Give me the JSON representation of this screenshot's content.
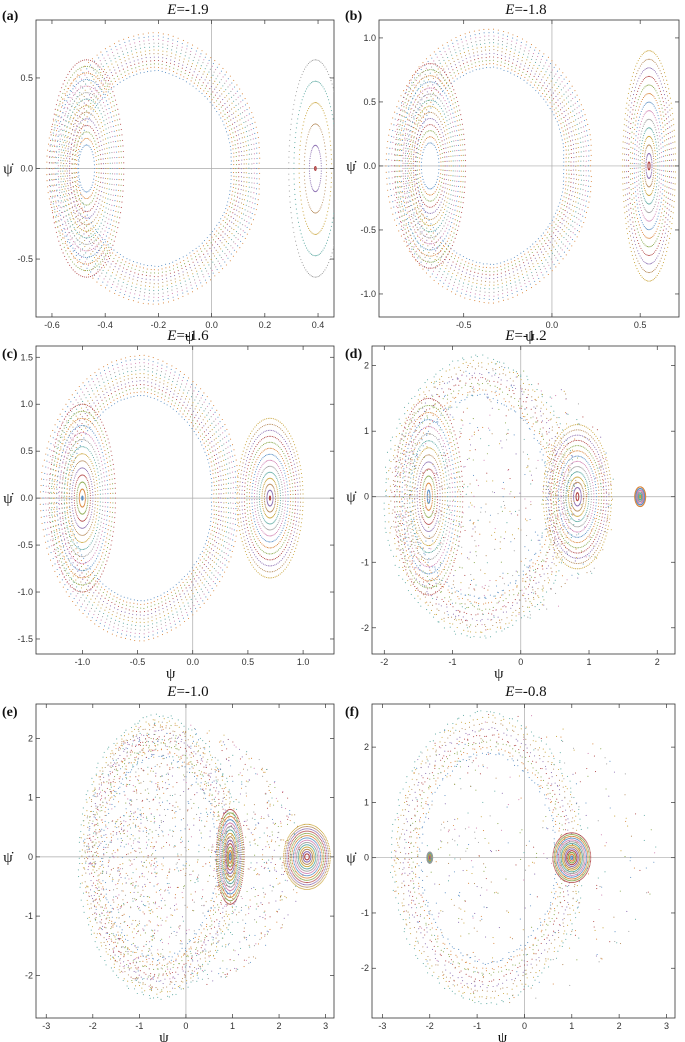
{
  "chart_data": [
    {
      "panel": "(a)",
      "title_prefix": "E",
      "title_value": "=-1.9",
      "type": "scatter",
      "xlabel": "ψ",
      "ylabel": "ψ̇",
      "xlim": [
        -0.66,
        0.46
      ],
      "ylim": [
        -0.82,
        0.82
      ],
      "xticks": [
        {
          "v": -0.6,
          "label": "-0.6"
        },
        {
          "v": -0.4,
          "label": "-0.4"
        },
        {
          "v": -0.2,
          "label": "-0.2"
        },
        {
          "v": 0.0,
          "label": "0.0"
        },
        {
          "v": 0.2,
          "label": "0.2"
        },
        {
          "v": 0.4,
          "label": "0.4"
        }
      ],
      "yticks": [
        {
          "v": -0.5,
          "label": "-0.5"
        },
        {
          "v": 0.0,
          "label": "0.0"
        },
        {
          "v": 0.5,
          "label": "0.5"
        }
      ],
      "outer_boundary": {
        "x_left": -0.62,
        "x_right": 0.22,
        "y_max": 0.75
      },
      "islands": [
        {
          "center": [
            -0.47,
            0.0
          ],
          "rx_max": 0.14,
          "ry_max": 0.6,
          "rx_min": 0.03,
          "ry_min": 0.13
        },
        {
          "center": [
            0.39,
            0.0
          ],
          "rx_max": 0.1,
          "ry_max": 0.6,
          "rx_min": 0.003,
          "ry_min": 0.01
        }
      ]
    },
    {
      "panel": "(b)",
      "title_prefix": "E",
      "title_value": "=-1.8",
      "type": "scatter",
      "xlabel": "ψ",
      "ylabel": "ψ̇",
      "xlim": [
        -0.98,
        0.72
      ],
      "ylim": [
        -1.18,
        1.14
      ],
      "xticks": [
        {
          "v": -0.5,
          "label": "-0.5"
        },
        {
          "v": 0.0,
          "label": "0.0"
        },
        {
          "v": 0.5,
          "label": "0.5"
        }
      ],
      "yticks": [
        {
          "v": -1.0,
          "label": "-1.0"
        },
        {
          "v": -0.5,
          "label": "-0.5"
        },
        {
          "v": 0.0,
          "label": "0.0"
        },
        {
          "v": 0.5,
          "label": "0.5"
        },
        {
          "v": 1.0,
          "label": "1.0"
        }
      ],
      "outer_boundary": {
        "x_left": -0.94,
        "x_right": 0.28,
        "y_max": 1.07
      },
      "islands": [
        {
          "center": [
            -0.69,
            0.0
          ],
          "rx_max": 0.2,
          "ry_max": 0.8,
          "rx_min": 0.05,
          "ry_min": 0.18
        },
        {
          "center": [
            0.55,
            0.0
          ],
          "rx_max": 0.15,
          "ry_max": 0.9,
          "rx_min": 0.006,
          "ry_min": 0.03
        }
      ]
    },
    {
      "panel": "(c)",
      "title_prefix": "E",
      "title_value": "=-1.6",
      "type": "scatter",
      "xlabel": "ψ",
      "ylabel": "ψ̇",
      "xlim": [
        -1.42,
        1.28
      ],
      "ylim": [
        -1.66,
        1.62
      ],
      "xticks": [
        {
          "v": -1.0,
          "label": "-1.0"
        },
        {
          "v": -0.5,
          "label": "-0.5"
        },
        {
          "v": 0.0,
          "label": "0.0"
        },
        {
          "v": 0.5,
          "label": "0.5"
        },
        {
          "v": 1.0,
          "label": "1.0"
        }
      ],
      "yticks": [
        {
          "v": -1.5,
          "label": "-1.5"
        },
        {
          "v": -1.0,
          "label": "-1.0"
        },
        {
          "v": -0.5,
          "label": "-0.5"
        },
        {
          "v": 0.0,
          "label": "0.0"
        },
        {
          "v": 0.5,
          "label": "0.5"
        },
        {
          "v": 1.0,
          "label": "1.0"
        },
        {
          "v": 1.5,
          "label": "1.5"
        }
      ],
      "outer_boundary": {
        "x_left": -1.38,
        "x_right": 0.5,
        "y_max": 1.52
      },
      "islands": [
        {
          "center": [
            -1.0,
            0.0
          ],
          "rx_max": 0.3,
          "ry_max": 1.0,
          "rx_min": 0.005,
          "ry_min": 0.02
        },
        {
          "center": [
            0.7,
            0.0
          ],
          "rx_max": 0.3,
          "ry_max": 0.85,
          "rx_min": 0.005,
          "ry_min": 0.02
        }
      ]
    },
    {
      "panel": "(d)",
      "title_prefix": "E",
      "title_value": "=-1.2",
      "type": "scatter",
      "xlabel": "ψ",
      "ylabel": "ψ̇",
      "xlim": [
        -2.18,
        2.26
      ],
      "ylim": [
        -2.4,
        2.3
      ],
      "xticks": [
        {
          "v": -2,
          "label": "-2"
        },
        {
          "v": -1,
          "label": "-1"
        },
        {
          "v": 0,
          "label": "0"
        },
        {
          "v": 1,
          "label": "1"
        },
        {
          "v": 2,
          "label": "2"
        }
      ],
      "yticks": [
        {
          "v": -2,
          "label": "-2"
        },
        {
          "v": -1,
          "label": "-1"
        },
        {
          "v": 0,
          "label": "0"
        },
        {
          "v": 1,
          "label": "1"
        },
        {
          "v": 2,
          "label": "2"
        }
      ],
      "outer_boundary": {
        "x_left": -2.0,
        "x_right": 0.9,
        "y_max": 2.15
      },
      "islands": [
        {
          "center": [
            -1.35,
            0.0
          ],
          "rx_max": 0.5,
          "ry_max": 1.5,
          "rx_min": 0.02,
          "ry_min": 0.1
        },
        {
          "center": [
            0.83,
            0.0
          ],
          "rx_max": 0.5,
          "ry_max": 1.1,
          "rx_min": 0.02,
          "ry_min": 0.06
        },
        {
          "center": [
            1.75,
            0.0
          ],
          "rx_max": 0.08,
          "ry_max": 0.15,
          "rx_min": 0.01,
          "ry_min": 0.02
        }
      ]
    },
    {
      "panel": "(e)",
      "title_prefix": "E",
      "title_value": "=-1.0",
      "type": "scatter",
      "xlabel": "ψ",
      "ylabel": "ψ̇",
      "xlim": [
        -3.22,
        3.18
      ],
      "ylim": [
        -2.72,
        2.58
      ],
      "xticks": [
        {
          "v": -3,
          "label": "-3"
        },
        {
          "v": -2,
          "label": "-2"
        },
        {
          "v": -1,
          "label": "-1"
        },
        {
          "v": 0,
          "label": "0"
        },
        {
          "v": 1,
          "label": "1"
        },
        {
          "v": 2,
          "label": "2"
        },
        {
          "v": 3,
          "label": "3"
        }
      ],
      "yticks": [
        {
          "v": -2,
          "label": "-2"
        },
        {
          "v": -1,
          "label": "-1"
        },
        {
          "v": 0,
          "label": "0"
        },
        {
          "v": 1,
          "label": "1"
        },
        {
          "v": 2,
          "label": "2"
        }
      ],
      "outer_boundary": {
        "x_left": -2.3,
        "x_right": 1.3,
        "y_max": 2.4
      },
      "islands": [
        {
          "center": [
            0.95,
            0.0
          ],
          "rx_max": 0.3,
          "ry_max": 0.8,
          "rx_min": 0.02,
          "ry_min": 0.05
        },
        {
          "center": [
            2.6,
            0.0
          ],
          "rx_max": 0.5,
          "ry_max": 0.55,
          "rx_min": 0.05,
          "ry_min": 0.05
        }
      ]
    },
    {
      "panel": "(f)",
      "title_prefix": "E",
      "title_value": "=-0.8",
      "type": "scatter",
      "xlabel": "ψ",
      "ylabel": "ψ̇",
      "xlim": [
        -3.22,
        3.18
      ],
      "ylim": [
        -2.9,
        2.78
      ],
      "xticks": [
        {
          "v": -3,
          "label": "-3"
        },
        {
          "v": -2,
          "label": "-2"
        },
        {
          "v": -1,
          "label": "-1"
        },
        {
          "v": 0,
          "label": "0"
        },
        {
          "v": 1,
          "label": "1"
        },
        {
          "v": 2,
          "label": "2"
        },
        {
          "v": 3,
          "label": "3"
        }
      ],
      "yticks": [
        {
          "v": -2,
          "label": "-2"
        },
        {
          "v": -1,
          "label": "-1"
        },
        {
          "v": 0,
          "label": "0"
        },
        {
          "v": 1,
          "label": "1"
        },
        {
          "v": 2,
          "label": "2"
        }
      ],
      "outer_boundary": {
        "x_left": -2.8,
        "x_right": 1.4,
        "y_max": 2.65
      },
      "islands": [
        {
          "center": [
            1.0,
            0.0
          ],
          "rx_max": 0.4,
          "ry_max": 0.45,
          "rx_min": 0.02,
          "ry_min": 0.03
        },
        {
          "center": [
            -2.0,
            0.0
          ],
          "rx_max": 0.06,
          "ry_max": 0.1,
          "rx_min": 0.01,
          "ry_min": 0.02
        }
      ]
    }
  ],
  "palette": [
    "#5b8fc4",
    "#d9863c",
    "#8aa84c",
    "#b34a4a",
    "#8a6cb0",
    "#b58a5a",
    "#c9a43a",
    "#5aa8a0",
    "#9a9a9a",
    "#d07fb0"
  ]
}
